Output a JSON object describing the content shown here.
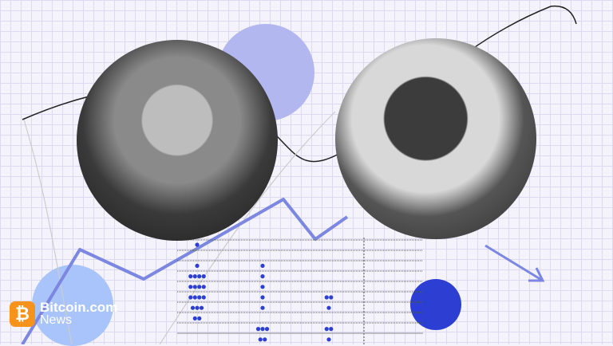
{
  "logo": {
    "brand": "Bitcoin.com",
    "sub": "News",
    "icon": "bitcoin-icon",
    "color": "#f7931a"
  },
  "colors": {
    "grid": "#dcd9f3",
    "accent_line": "#7b87e0",
    "dot": "#2d3fd3",
    "light_circle": "#a8c4fb",
    "lavender_circle": "#b3b7ef"
  },
  "dot_plot": {
    "columns": [
      {
        "rows": [
          1,
          0,
          1,
          4,
          4,
          4,
          3,
          2,
          0,
          0
        ]
      },
      {
        "rows": [
          0,
          0,
          1,
          1,
          1,
          1,
          1,
          0,
          3,
          2
        ]
      },
      {
        "rows": [
          0,
          0,
          0,
          0,
          0,
          2,
          1,
          0,
          2,
          1
        ]
      }
    ]
  },
  "photos": [
    {
      "label": "portrait-left"
    },
    {
      "label": "portrait-right"
    }
  ]
}
